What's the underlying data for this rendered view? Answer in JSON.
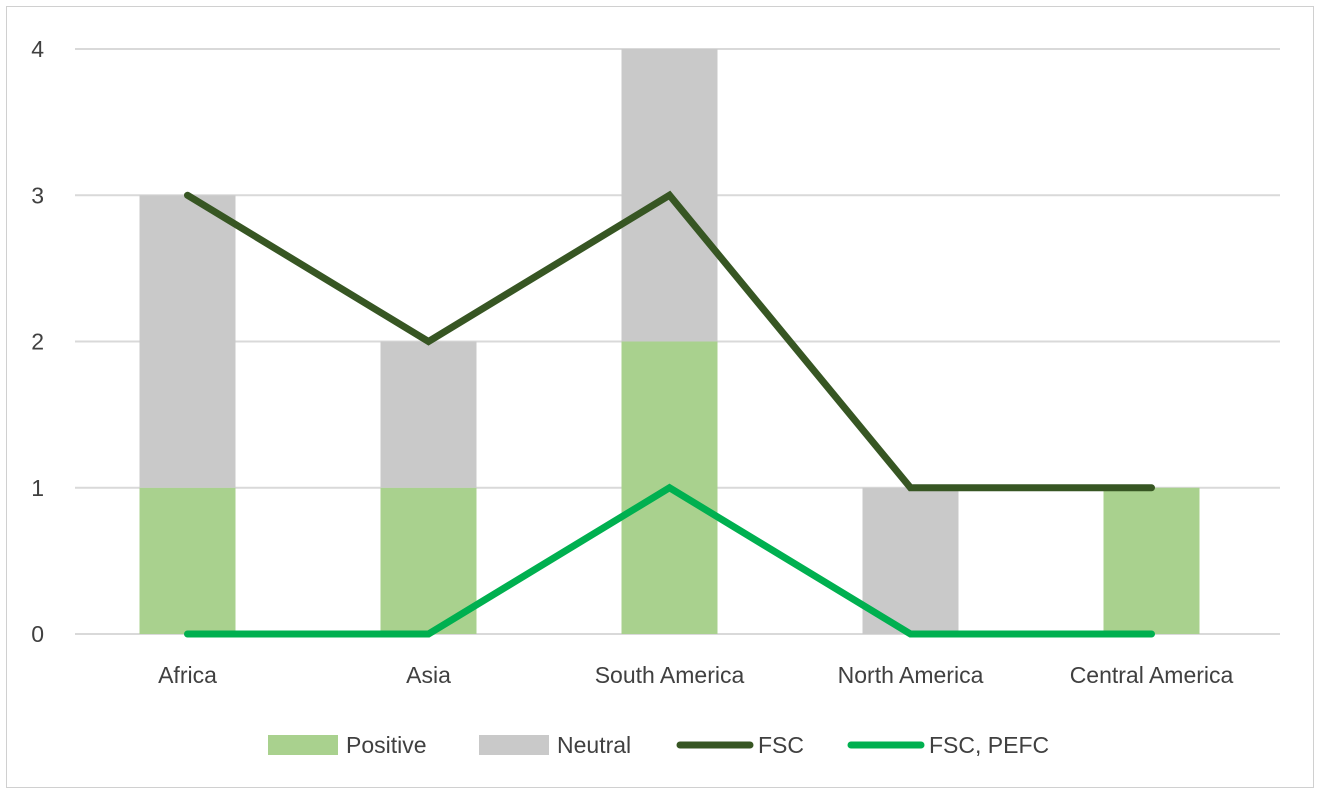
{
  "chart_data": {
    "type": "bar",
    "stacked": true,
    "categories": [
      "Africa",
      "Asia",
      "South America",
      "North America",
      "Central America"
    ],
    "series": [
      {
        "name": "Positive",
        "kind": "bar",
        "color": "#a9d18e",
        "values": [
          1,
          1,
          2,
          0,
          1
        ]
      },
      {
        "name": "Neutral",
        "kind": "bar",
        "color": "#c9c9c9",
        "values": [
          2,
          1,
          2,
          1,
          0
        ]
      },
      {
        "name": "FSC",
        "kind": "line",
        "color": "#375623",
        "values": [
          3,
          2,
          3,
          1,
          1
        ]
      },
      {
        "name": "FSC, PEFC",
        "kind": "line",
        "color": "#00b050",
        "values": [
          0,
          0,
          1,
          0,
          0
        ]
      }
    ],
    "yticks": [
      0,
      1,
      2,
      3,
      4
    ],
    "ylim": [
      0,
      4
    ],
    "grid": true,
    "legend_position": "bottom",
    "title": "",
    "xlabel": "",
    "ylabel": ""
  }
}
